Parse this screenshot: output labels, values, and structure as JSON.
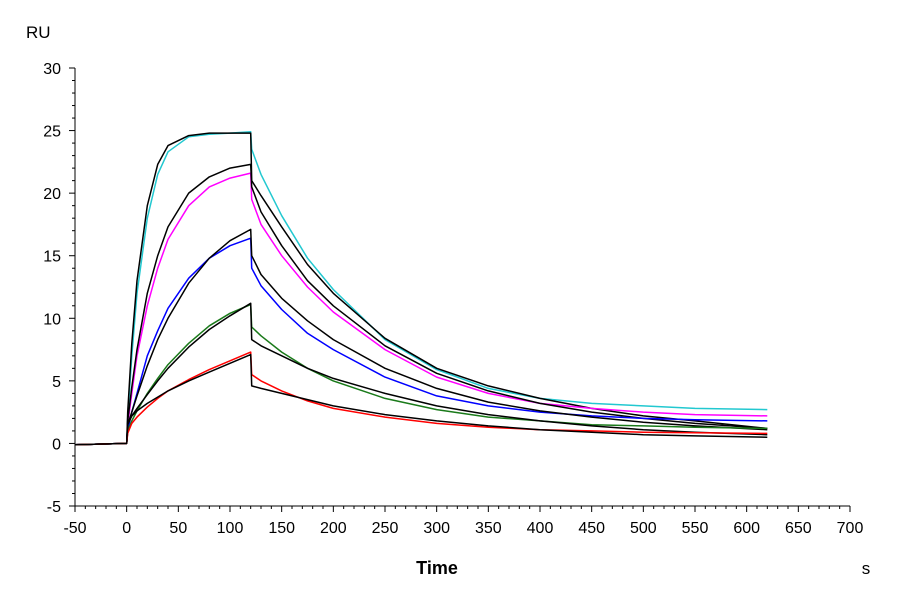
{
  "chart_data": {
    "type": "line",
    "title": "",
    "xlabel": "Time",
    "xunit": "s",
    "ylabel": "RU",
    "xlim": [
      -50,
      700
    ],
    "ylim": [
      -5,
      30
    ],
    "xticks": [
      -50,
      0,
      50,
      100,
      150,
      200,
      250,
      300,
      350,
      400,
      450,
      500,
      550,
      600,
      650,
      700
    ],
    "yticks": [
      -5,
      0,
      5,
      10,
      15,
      20,
      25,
      30
    ],
    "grid": false,
    "x": [
      -50,
      0,
      1,
      5,
      10,
      20,
      30,
      40,
      60,
      80,
      100,
      120,
      121,
      130,
      150,
      175,
      200,
      250,
      300,
      350,
      400,
      450,
      500,
      550,
      620
    ],
    "series": [
      {
        "name": "cyan",
        "color": "#22c8d0",
        "values": [
          -0.1,
          0,
          2,
          7,
          12,
          18,
          21.5,
          23.3,
          24.5,
          24.7,
          24.8,
          24.9,
          23.5,
          21.5,
          18.2,
          14.8,
          12.3,
          8.3,
          5.9,
          4.4,
          3.6,
          3.2,
          3.0,
          2.8,
          2.7
        ]
      },
      {
        "name": "cyan-fit",
        "color": "#000000",
        "values": [
          -0.1,
          0,
          2.5,
          8,
          13,
          19,
          22.3,
          23.8,
          24.6,
          24.8,
          24.8,
          24.8,
          21,
          19.8,
          17.3,
          14.3,
          12.0,
          8.4,
          6.0,
          4.6,
          3.6,
          2.8,
          2.2,
          1.8,
          1.2
        ]
      },
      {
        "name": "magenta",
        "color": "#ff00ff",
        "values": [
          -0.1,
          0,
          1.5,
          4,
          7,
          11,
          14,
          16.3,
          19,
          20.5,
          21.2,
          21.6,
          19.5,
          17.5,
          15,
          12.5,
          10.5,
          7.5,
          5.3,
          4.0,
          3.2,
          2.8,
          2.5,
          2.3,
          2.2
        ]
      },
      {
        "name": "magenta-fit",
        "color": "#000000",
        "values": [
          -0.1,
          0,
          1.8,
          4.5,
          7.5,
          12,
          15,
          17.3,
          20,
          21.3,
          22,
          22.3,
          20.5,
          18.5,
          15.8,
          13,
          11,
          7.8,
          5.6,
          4.2,
          3.2,
          2.5,
          2,
          1.6,
          1.2
        ]
      },
      {
        "name": "blue",
        "color": "#0000ff",
        "values": [
          -0.1,
          0,
          1,
          2.5,
          4,
          7,
          9,
          10.8,
          13.2,
          14.8,
          15.8,
          16.4,
          14,
          12.6,
          10.7,
          8.8,
          7.5,
          5.3,
          3.8,
          3.0,
          2.5,
          2.2,
          2.0,
          1.9,
          1.8
        ]
      },
      {
        "name": "blue-fit",
        "color": "#000000",
        "values": [
          -0.1,
          0,
          1.5,
          2.5,
          3.8,
          6.2,
          8.3,
          10,
          12.8,
          14.8,
          16.2,
          17.1,
          15,
          13.5,
          11.6,
          9.8,
          8.3,
          6,
          4.4,
          3.3,
          2.6,
          2.1,
          1.7,
          1.4,
          1.1
        ]
      },
      {
        "name": "green",
        "color": "#1a7a1a",
        "values": [
          -0.1,
          0,
          1,
          1.8,
          2.6,
          4,
          5.2,
          6.3,
          8,
          9.4,
          10.4,
          11.1,
          9.3,
          8.6,
          7.3,
          6,
          5,
          3.6,
          2.7,
          2.1,
          1.8,
          1.5,
          1.4,
          1.3,
          1.2
        ]
      },
      {
        "name": "green-fit",
        "color": "#000000",
        "values": [
          -0.1,
          0,
          1.5,
          2.2,
          2.8,
          3.9,
          5,
          6,
          7.7,
          9.1,
          10.2,
          11.2,
          8.3,
          7.8,
          7,
          6,
          5.2,
          4,
          3,
          2.3,
          1.8,
          1.4,
          1.1,
          0.9,
          0.7
        ]
      },
      {
        "name": "red",
        "color": "#ff0000",
        "values": [
          -0.1,
          0,
          0.8,
          1.6,
          2.1,
          2.9,
          3.6,
          4.2,
          5.1,
          5.9,
          6.6,
          7.3,
          5.5,
          5,
          4.2,
          3.4,
          2.8,
          2.1,
          1.6,
          1.3,
          1.1,
          1.0,
          0.9,
          0.85,
          0.8
        ]
      },
      {
        "name": "red-fit",
        "color": "#000000",
        "values": [
          -0.1,
          0,
          1.6,
          2.2,
          2.6,
          3.2,
          3.7,
          4.2,
          5,
          5.7,
          6.4,
          7.1,
          4.6,
          4.4,
          4,
          3.5,
          3.0,
          2.3,
          1.8,
          1.4,
          1.1,
          0.9,
          0.7,
          0.6,
          0.5
        ]
      }
    ]
  }
}
